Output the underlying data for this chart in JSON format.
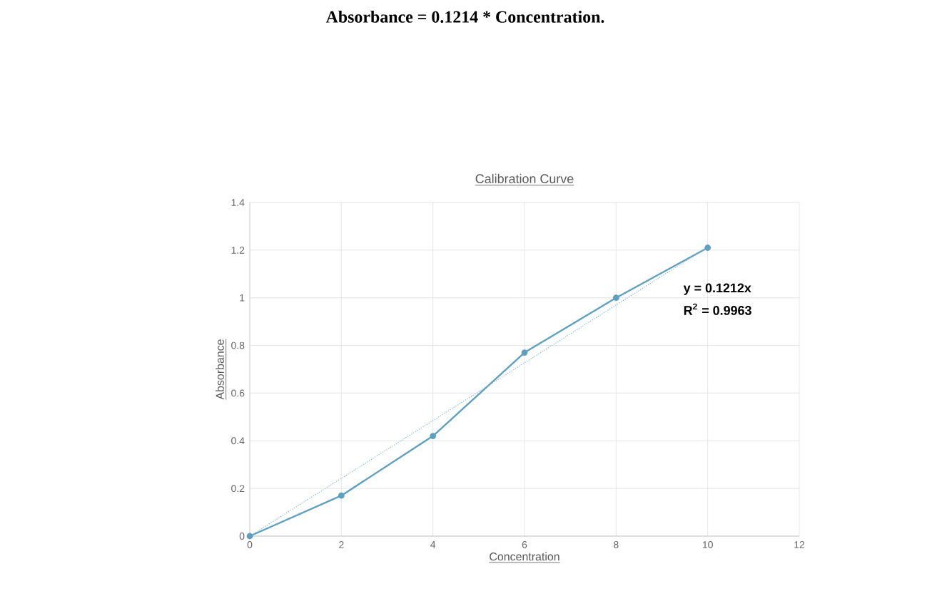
{
  "chart_data": {
    "type": "line",
    "title": "Absorbance = 0.1214 * Concentration.",
    "subtitle": "Calibration Curve",
    "xlabel": "Concentration",
    "ylabel": "Absorbance",
    "annotations": [
      "y = 0.1212x",
      "R$^{2}$ = 0.9963"
    ],
    "series": [
      {
        "color": "#5f9fc0",
        "x": [
          0,
          2,
          4,
          6,
          8,
          10
        ],
        "values": [
          0,
          0.17,
          0.42,
          0.77,
          1.0,
          1.21
        ],
        "marker": "circle",
        "line_style": "solid"
      },
      {
        "color": "#7fb3cf",
        "x": [
          0,
          10
        ],
        "values": [
          0,
          1.212
        ],
        "marker": "none",
        "line_style": "dotted"
      }
    ],
    "xlim": [
      0,
      12
    ],
    "xticks": [
      0,
      2,
      4,
      6,
      8,
      10,
      12
    ],
    "ylim": [
      0,
      1.4
    ],
    "yticks": [
      0,
      0.2,
      0.4,
      0.6,
      0.8,
      1,
      1.2,
      1.4
    ],
    "grid": true
  }
}
